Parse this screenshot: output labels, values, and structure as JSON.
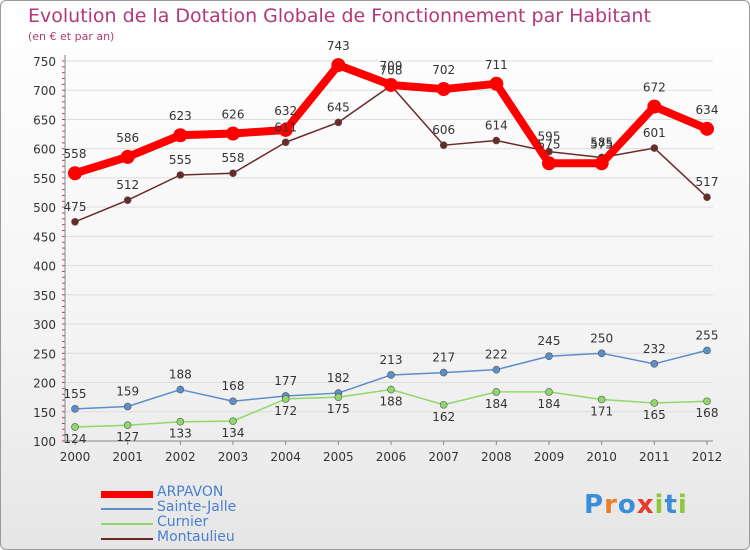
{
  "header": {
    "title": "Evolution de la Dotation Globale de Fonctionnement par Habitant",
    "subtitle": "(en € et par an)"
  },
  "logo": {
    "text": "Proxiti",
    "letter_colors": [
      "#3a8fd8",
      "#e8802a",
      "#3a8fd8",
      "#e83a2a",
      "#8fc63a",
      "#3a8fd8",
      "#8fc63a"
    ]
  },
  "chart_data": {
    "type": "line",
    "title": "Evolution de la Dotation Globale de Fonctionnement par Habitant",
    "subtitle": "(en € et par an)",
    "x": [
      "2000",
      "2001",
      "2002",
      "2003",
      "2004",
      "2005",
      "2006",
      "2007",
      "2008",
      "2009",
      "2010",
      "2011",
      "2012"
    ],
    "ylim": [
      100,
      750
    ],
    "yticks": [
      100,
      150,
      200,
      250,
      300,
      350,
      400,
      450,
      500,
      550,
      600,
      650,
      700,
      750
    ],
    "grid": "horizontal",
    "legend_position": "bottom-left",
    "series": [
      {
        "name": "ARPAVON",
        "color": "#ff0000",
        "values": [
          558,
          586,
          623,
          626,
          632,
          743,
          709,
          702,
          711,
          575,
          575,
          672,
          634
        ]
      },
      {
        "name": "Sainte-Jalle",
        "color": "#5b8fc9",
        "values": [
          155,
          159,
          188,
          168,
          177,
          182,
          213,
          217,
          222,
          245,
          250,
          232,
          255
        ]
      },
      {
        "name": "Curnier",
        "color": "#8fd86a",
        "values": [
          124,
          127,
          133,
          134,
          172,
          175,
          188,
          162,
          184,
          184,
          171,
          165,
          168
        ]
      },
      {
        "name": "Montaulieu",
        "color": "#6b2a2a",
        "values": [
          475,
          512,
          555,
          558,
          611,
          645,
          708,
          606,
          614,
          595,
          585,
          601,
          517
        ]
      }
    ],
    "labels": {
      "ARPAVON": [
        "558",
        "586",
        "623",
        "626",
        "632",
        "743",
        "709",
        "702",
        "711",
        "575",
        "575",
        "672",
        "634"
      ],
      "Sainte-Jalle": [
        "155",
        "159",
        "188",
        "168",
        "177",
        "182",
        "213",
        "217",
        "222",
        "245",
        "250",
        "232",
        "255"
      ],
      "Curnier": [
        "124",
        "127",
        "133",
        "134",
        "172",
        "175",
        "188",
        "162",
        "184",
        "184",
        "171",
        "165",
        "168"
      ],
      "Montaulieu": [
        "475",
        "512",
        "555",
        "558",
        "611",
        "645",
        "708",
        "606",
        "614",
        "595",
        "585",
        "601",
        "517"
      ]
    }
  }
}
